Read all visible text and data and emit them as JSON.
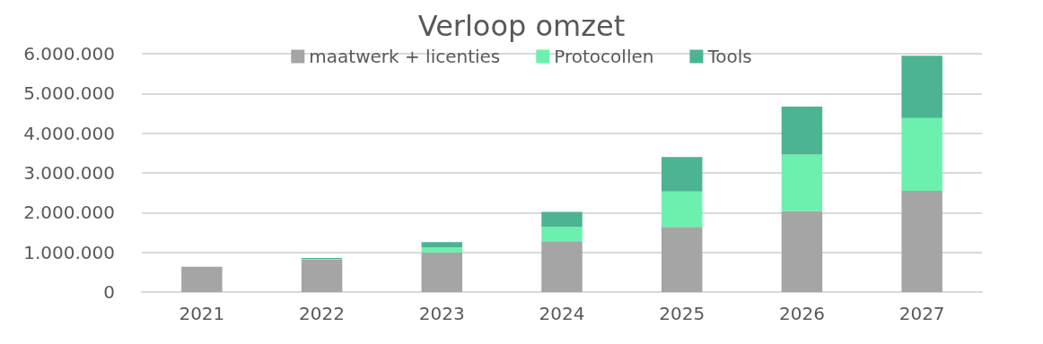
{
  "chart_data": {
    "type": "bar",
    "title": "Verloop omzet",
    "stacked": true,
    "categories": [
      "2021",
      "2022",
      "2023",
      "2024",
      "2025",
      "2026",
      "2027"
    ],
    "series": [
      {
        "name": "maatwerk + licenties",
        "color": "#a5a5a5",
        "values": [
          640000,
          820000,
          1000000,
          1280000,
          1640000,
          2040000,
          2550000
        ]
      },
      {
        "name": "Protocollen",
        "color": "#6cf0ae",
        "values": [
          0,
          15000,
          130000,
          360000,
          890000,
          1420000,
          1830000
        ]
      },
      {
        "name": "Tools",
        "color": "#4cb393",
        "values": [
          0,
          20000,
          130000,
          380000,
          870000,
          1210000,
          1570000
        ]
      }
    ],
    "ylim": [
      0,
      6000000
    ],
    "yticks": [
      {
        "value": 0,
        "label": "0"
      },
      {
        "value": 1000000,
        "label": "1.000.000"
      },
      {
        "value": 2000000,
        "label": "2.000.000"
      },
      {
        "value": 3000000,
        "label": "3.000.000"
      },
      {
        "value": 4000000,
        "label": "4.000.000"
      },
      {
        "value": 5000000,
        "label": "5.000.000"
      },
      {
        "value": 6000000,
        "label": "6.000.000"
      }
    ],
    "grid": "y",
    "legend": "top"
  }
}
